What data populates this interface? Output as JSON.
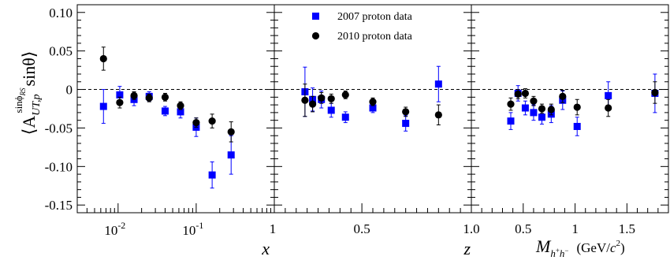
{
  "chart_data": {
    "type": "scatter",
    "y_axis": {
      "label_main": "⟨A",
      "label_sup": "sinϕ",
      "label_sup_sub": "RS",
      "label_sin": "sinθ",
      "label_close": "⟩",
      "label_sub": "UT,p",
      "ylim": [
        -0.16,
        0.11
      ],
      "tick_values": [
        0.1,
        0.05,
        0,
        -0.05,
        -0.1,
        -0.15
      ],
      "tick_labels": [
        "0.10",
        "0.05",
        "0",
        "-0.05",
        "-0.10",
        "-0.15"
      ]
    },
    "legend": {
      "placement": "top-center of middle panel",
      "entries": [
        {
          "label": "2007 proton data",
          "marker": "square",
          "color": "#0000ff"
        },
        {
          "label": "2010 proton data",
          "marker": "circle",
          "color": "#000000"
        }
      ]
    },
    "panels": [
      {
        "xlabel": "x",
        "log_x": true,
        "xlim": [
          0.003,
          1
        ],
        "tick_labels": [
          {
            "x": 0.01,
            "base": "10",
            "exp": "-2"
          },
          {
            "x": 0.1,
            "base": "10",
            "exp": "-1"
          },
          {
            "x": 1,
            "label": "1"
          }
        ],
        "series": [
          {
            "name": "2007 proton data",
            "points": [
              {
                "x": 0.0065,
                "y": -0.022,
                "err": 0.022
              },
              {
                "x": 0.0105,
                "y": -0.007,
                "err": 0.011
              },
              {
                "x": 0.016,
                "y": -0.013,
                "err": 0.008
              },
              {
                "x": 0.025,
                "y": -0.009,
                "err": 0.006
              },
              {
                "x": 0.04,
                "y": -0.028,
                "err": 0.006
              },
              {
                "x": 0.063,
                "y": -0.029,
                "err": 0.008
              },
              {
                "x": 0.1,
                "y": -0.049,
                "err": 0.012
              },
              {
                "x": 0.16,
                "y": -0.111,
                "err": 0.017
              },
              {
                "x": 0.28,
                "y": -0.085,
                "err": 0.025
              }
            ]
          },
          {
            "name": "2010 proton data",
            "points": [
              {
                "x": 0.0065,
                "y": 0.04,
                "err": 0.015
              },
              {
                "x": 0.0105,
                "y": -0.017,
                "err": 0.007
              },
              {
                "x": 0.016,
                "y": -0.008,
                "err": 0.005
              },
              {
                "x": 0.025,
                "y": -0.011,
                "err": 0.005
              },
              {
                "x": 0.04,
                "y": -0.01,
                "err": 0.005
              },
              {
                "x": 0.063,
                "y": -0.021,
                "err": 0.005
              },
              {
                "x": 0.1,
                "y": -0.043,
                "err": 0.006
              },
              {
                "x": 0.16,
                "y": -0.041,
                "err": 0.009
              },
              {
                "x": 0.28,
                "y": -0.055,
                "err": 0.013
              }
            ]
          }
        ]
      },
      {
        "xlabel": "z",
        "log_x": false,
        "xlim": [
          0.1,
          1.0
        ],
        "tick_values": [
          0.5,
          1.0
        ],
        "tick_labels": [
          "0.5",
          "1.0"
        ],
        "series": [
          {
            "name": "2007 proton data",
            "points": [
              {
                "x": 0.24,
                "y": -0.003,
                "err": 0.032
              },
              {
                "x": 0.275,
                "y": -0.013,
                "err": 0.015
              },
              {
                "x": 0.315,
                "y": -0.013,
                "err": 0.011
              },
              {
                "x": 0.36,
                "y": -0.027,
                "err": 0.009
              },
              {
                "x": 0.425,
                "y": -0.036,
                "err": 0.007
              },
              {
                "x": 0.55,
                "y": -0.024,
                "err": 0.006
              },
              {
                "x": 0.7,
                "y": -0.044,
                "err": 0.01
              },
              {
                "x": 0.85,
                "y": 0.007,
                "err": 0.023
              }
            ]
          },
          {
            "name": "2010 proton data",
            "points": [
              {
                "x": 0.24,
                "y": -0.014,
                "err": 0.021
              },
              {
                "x": 0.275,
                "y": -0.019,
                "err": 0.01
              },
              {
                "x": 0.315,
                "y": -0.011,
                "err": 0.007
              },
              {
                "x": 0.36,
                "y": -0.012,
                "err": 0.006
              },
              {
                "x": 0.425,
                "y": -0.007,
                "err": 0.005
              },
              {
                "x": 0.55,
                "y": -0.016,
                "err": 0.005
              },
              {
                "x": 0.7,
                "y": -0.029,
                "err": 0.006
              },
              {
                "x": 0.85,
                "y": -0.033,
                "err": 0.013
              }
            ]
          }
        ]
      },
      {
        "xlabel_main": "M",
        "xlabel_sub": "h",
        "xlabel_sub_sup1": "+",
        "xlabel_sub2": "h",
        "xlabel_sub_sup2": "−",
        "xlabel_units_open": "(GeV/",
        "xlabel_units_c": "c",
        "xlabel_units_exp": "2",
        "xlabel_units_close": ")",
        "log_x": false,
        "xlim": [
          0.0,
          1.9
        ],
        "tick_values": [
          0.5,
          1.0,
          1.5
        ],
        "tick_labels": [
          "0.5",
          "1",
          "1.5"
        ],
        "series": [
          {
            "name": "2007 proton data",
            "points": [
              {
                "x": 0.38,
                "y": -0.041,
                "err": 0.011
              },
              {
                "x": 0.45,
                "y": -0.005,
                "err": 0.01
              },
              {
                "x": 0.52,
                "y": -0.024,
                "err": 0.009
              },
              {
                "x": 0.6,
                "y": -0.03,
                "err": 0.01
              },
              {
                "x": 0.68,
                "y": -0.036,
                "err": 0.009
              },
              {
                "x": 0.77,
                "y": -0.032,
                "err": 0.011
              },
              {
                "x": 0.88,
                "y": -0.014,
                "err": 0.012
              },
              {
                "x": 1.02,
                "y": -0.048,
                "err": 0.012
              },
              {
                "x": 1.32,
                "y": -0.008,
                "err": 0.018
              },
              {
                "x": 1.77,
                "y": -0.005,
                "err": 0.025
              }
            ]
          },
          {
            "name": "2010 proton data",
            "points": [
              {
                "x": 0.38,
                "y": -0.019,
                "err": 0.008
              },
              {
                "x": 0.45,
                "y": -0.006,
                "err": 0.006
              },
              {
                "x": 0.52,
                "y": -0.005,
                "err": 0.006
              },
              {
                "x": 0.6,
                "y": -0.015,
                "err": 0.006
              },
              {
                "x": 0.68,
                "y": -0.025,
                "err": 0.006
              },
              {
                "x": 0.77,
                "y": -0.026,
                "err": 0.007
              },
              {
                "x": 0.88,
                "y": -0.009,
                "err": 0.008
              },
              {
                "x": 1.02,
                "y": -0.023,
                "err": 0.01
              },
              {
                "x": 1.32,
                "y": -0.024,
                "err": 0.011
              },
              {
                "x": 1.77,
                "y": -0.004,
                "err": 0.014
              }
            ]
          }
        ]
      }
    ]
  }
}
